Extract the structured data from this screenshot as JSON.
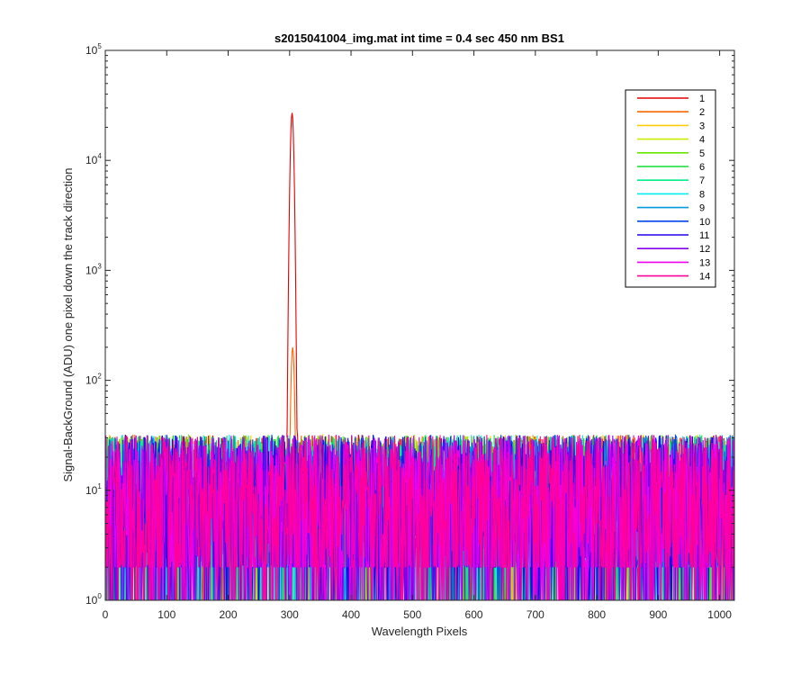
{
  "chart_data": {
    "type": "line",
    "title": "s2015041004_img.mat int time = 0.4 sec  450 nm BS1",
    "xlabel": "Wavelength Pixels",
    "ylabel": "Signal-BackGround (ADU) one pixel down the track direction",
    "xlim": [
      0,
      1024
    ],
    "ylim": [
      1,
      100000
    ],
    "yscale": "log",
    "x_ticks": [
      "0",
      "100",
      "200",
      "300",
      "400",
      "500",
      "600",
      "700",
      "800",
      "900",
      "1000"
    ],
    "y_ticks": [
      {
        "base": "10",
        "exp": "0"
      },
      {
        "base": "10",
        "exp": "1"
      },
      {
        "base": "10",
        "exp": "2"
      },
      {
        "base": "10",
        "exp": "3"
      },
      {
        "base": "10",
        "exp": "4"
      },
      {
        "base": "10",
        "exp": "5"
      }
    ],
    "grid": false,
    "legend_position": "top-right",
    "noise_level_approx": {
      "typical_range": [
        2,
        35
      ],
      "floor": 1
    },
    "series": [
      {
        "name": "1",
        "color": "#e60000",
        "peak": {
          "x": 304,
          "y": 27000
        }
      },
      {
        "name": "2",
        "color": "#ff6600",
        "peak": {
          "x": 305,
          "y": 200
        }
      },
      {
        "name": "3",
        "color": "#ffcc00"
      },
      {
        "name": "4",
        "color": "#ccee00"
      },
      {
        "name": "5",
        "color": "#66e600"
      },
      {
        "name": "6",
        "color": "#11dd33"
      },
      {
        "name": "7",
        "color": "#00ee88"
      },
      {
        "name": "8",
        "color": "#00eeee"
      },
      {
        "name": "9",
        "color": "#0099dd"
      },
      {
        "name": "10",
        "color": "#0044ee"
      },
      {
        "name": "11",
        "color": "#2200ee"
      },
      {
        "name": "12",
        "color": "#8800ee"
      },
      {
        "name": "13",
        "color": "#ee00ee"
      },
      {
        "name": "14",
        "color": "#ff0099"
      }
    ]
  }
}
